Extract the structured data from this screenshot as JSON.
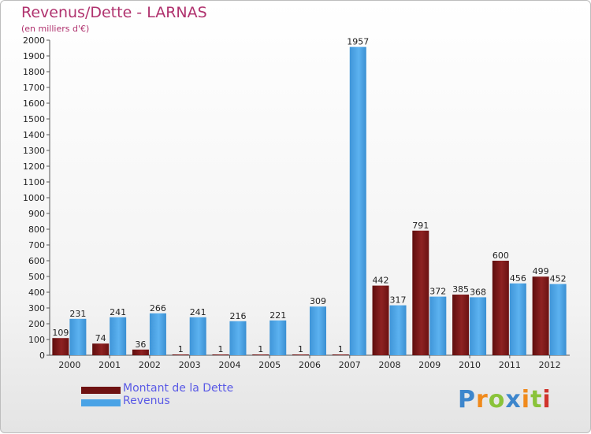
{
  "title": "Revenus/Dette - LARNAS",
  "subtitle": "(en milliers d'€)",
  "legend": {
    "dette": "Montant de la Dette",
    "revenus": "Revenus"
  },
  "logo": [
    "P",
    "r",
    "o",
    "x",
    "i",
    "t",
    "i"
  ],
  "colors": {
    "dette": "#7a1515",
    "revenus": "#4aa3e6",
    "title": "#b0326e",
    "legend_text": "#5a5ae6",
    "logo": [
      "#3d86cc",
      "#f08a1c",
      "#8ac33a",
      "#3d86cc",
      "#f08a1c",
      "#8ac33a",
      "#d0342c"
    ]
  },
  "chart_data": {
    "type": "bar",
    "categories": [
      "2000",
      "2001",
      "2002",
      "2003",
      "2004",
      "2005",
      "2006",
      "2007",
      "2008",
      "2009",
      "2010",
      "2011",
      "2012"
    ],
    "series": [
      {
        "name": "Montant de la Dette",
        "values": [
          109,
          74,
          36,
          1,
          1,
          1,
          1,
          1,
          442,
          791,
          385,
          600,
          499
        ]
      },
      {
        "name": "Revenus",
        "values": [
          231,
          241,
          266,
          241,
          216,
          221,
          309,
          1957,
          317,
          372,
          368,
          456,
          452
        ]
      }
    ],
    "title": "Revenus/Dette - LARNAS",
    "xlabel": "",
    "ylabel": "(en milliers d'€)",
    "ylim": [
      0,
      2000
    ],
    "yticks": [
      0,
      100,
      200,
      300,
      400,
      500,
      600,
      700,
      800,
      900,
      1000,
      1100,
      1200,
      1300,
      1400,
      1500,
      1600,
      1700,
      1800,
      1900,
      2000
    ],
    "grid": false,
    "legend_position": "bottom-left"
  }
}
